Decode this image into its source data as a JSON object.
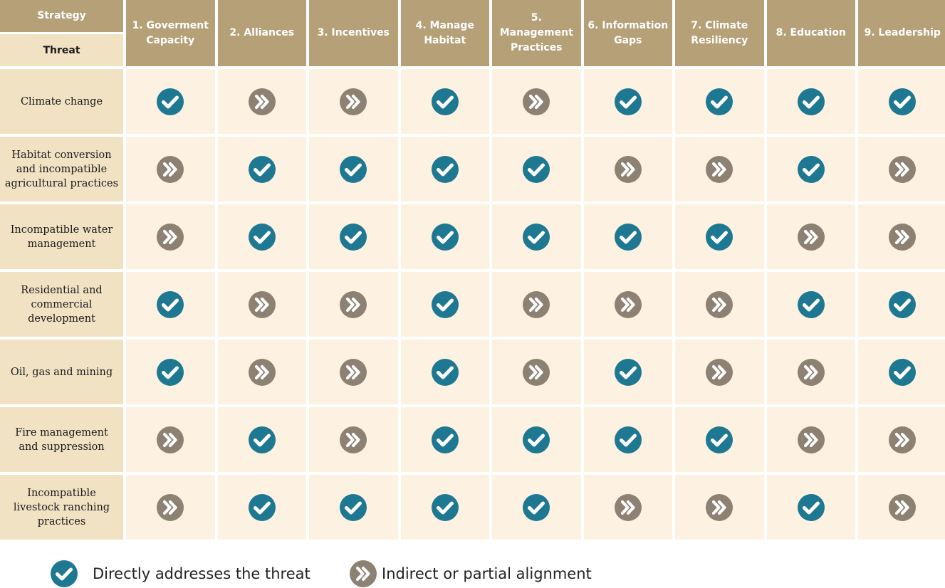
{
  "header": {
    "strategy_label": "Strategy",
    "threat_label": "Threat"
  },
  "strategies": [
    "1. Goverment Capacity",
    "2. Alliances",
    "3. Incentives",
    "4. Manage Habitat",
    "5. Management Practices",
    "6. Information Gaps",
    "7.  Climate Resiliency",
    "8. Education",
    "9. Leadership"
  ],
  "threats": [
    {
      "label": "Climate change",
      "cells": [
        "direct",
        "indirect",
        "indirect",
        "direct",
        "indirect",
        "direct",
        "direct",
        "direct",
        "direct"
      ]
    },
    {
      "label": "Habitat conversion and incompatible agricultural practices",
      "cells": [
        "indirect",
        "direct",
        "direct",
        "direct",
        "direct",
        "indirect",
        "indirect",
        "direct",
        "indirect"
      ]
    },
    {
      "label": "Incompatible water management",
      "cells": [
        "indirect",
        "direct",
        "direct",
        "direct",
        "direct",
        "direct",
        "direct",
        "indirect",
        "indirect"
      ]
    },
    {
      "label": "Residential and commercial development",
      "cells": [
        "direct",
        "indirect",
        "indirect",
        "direct",
        "indirect",
        "indirect",
        "indirect",
        "direct",
        "direct"
      ]
    },
    {
      "label": "Oil, gas and mining",
      "cells": [
        "direct",
        "indirect",
        "indirect",
        "direct",
        "indirect",
        "direct",
        "indirect",
        "indirect",
        "direct"
      ]
    },
    {
      "label": "Fire management and suppression",
      "cells": [
        "indirect",
        "direct",
        "indirect",
        "direct",
        "direct",
        "direct",
        "direct",
        "indirect",
        "indirect"
      ]
    },
    {
      "label": "Incompatible livestock ranching practices",
      "cells": [
        "indirect",
        "direct",
        "direct",
        "direct",
        "direct",
        "indirect",
        "indirect",
        "direct",
        "indirect"
      ]
    }
  ],
  "legend": {
    "direct_label": "Directly addresses the threat",
    "indirect_label": "Indirect or partial alignment"
  },
  "icons": {
    "direct": "check-icon",
    "indirect": "double-chevron-right-icon"
  },
  "colors": {
    "header_bg": "#b5a078",
    "label_bg": "#f2e2c4",
    "cell_bg": "#fdf2e2",
    "direct_icon": "#1f7891",
    "indirect_icon": "#8d8174"
  }
}
